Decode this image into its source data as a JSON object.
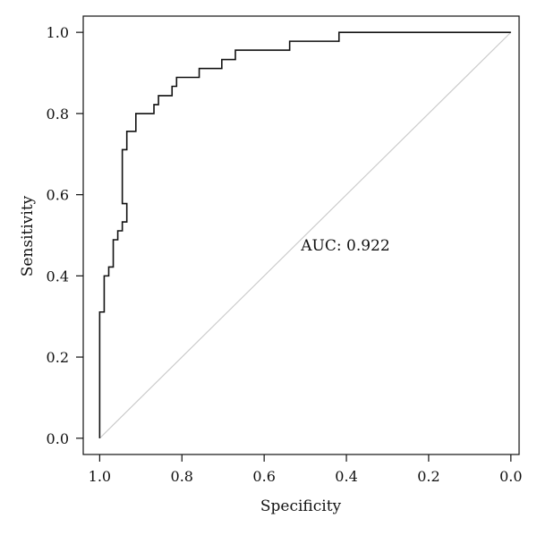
{
  "chart_data": {
    "type": "line",
    "xlabel": "Specificity",
    "ylabel": "Sensitivity",
    "xlim": [
      1.04,
      -0.02
    ],
    "ylim": [
      -0.04,
      1.04
    ],
    "x_reversed": true,
    "x_ticks": [
      1.0,
      0.8,
      0.6,
      0.4,
      0.2,
      0.0
    ],
    "x_tick_labels": [
      "1.0",
      "0.8",
      "0.6",
      "0.4",
      "0.2",
      "0.0"
    ],
    "y_ticks": [
      0.0,
      0.2,
      0.4,
      0.6,
      0.8,
      1.0
    ],
    "y_tick_labels": [
      "0.0",
      "0.2",
      "0.4",
      "0.6",
      "0.8",
      "1.0"
    ],
    "grid": false,
    "annotation": "AUC: 0.922",
    "series": [
      {
        "role": "roc-curve",
        "color": "#111111",
        "points": [
          [
            1.0,
            0.0
          ],
          [
            1.0,
            0.311
          ],
          [
            0.989,
            0.311
          ],
          [
            0.989,
            0.4
          ],
          [
            0.978,
            0.4
          ],
          [
            0.978,
            0.422
          ],
          [
            0.967,
            0.422
          ],
          [
            0.967,
            0.489
          ],
          [
            0.956,
            0.489
          ],
          [
            0.956,
            0.511
          ],
          [
            0.945,
            0.511
          ],
          [
            0.945,
            0.533
          ],
          [
            0.934,
            0.533
          ],
          [
            0.934,
            0.578
          ],
          [
            0.945,
            0.578
          ],
          [
            0.945,
            0.711
          ],
          [
            0.934,
            0.711
          ],
          [
            0.934,
            0.756
          ],
          [
            0.912,
            0.756
          ],
          [
            0.912,
            0.8
          ],
          [
            0.868,
            0.8
          ],
          [
            0.868,
            0.822
          ],
          [
            0.857,
            0.822
          ],
          [
            0.857,
            0.844
          ],
          [
            0.824,
            0.844
          ],
          [
            0.824,
            0.867
          ],
          [
            0.813,
            0.867
          ],
          [
            0.813,
            0.889
          ],
          [
            0.758,
            0.889
          ],
          [
            0.758,
            0.911
          ],
          [
            0.703,
            0.911
          ],
          [
            0.703,
            0.933
          ],
          [
            0.67,
            0.933
          ],
          [
            0.67,
            0.956
          ],
          [
            0.538,
            0.956
          ],
          [
            0.538,
            0.978
          ],
          [
            0.418,
            0.978
          ],
          [
            0.418,
            1.0
          ],
          [
            0.0,
            1.0
          ]
        ]
      },
      {
        "role": "chance-diagonal",
        "color": "#c8c8c8",
        "points": [
          [
            1.0,
            0.0
          ],
          [
            0.0,
            1.0
          ]
        ]
      }
    ]
  }
}
